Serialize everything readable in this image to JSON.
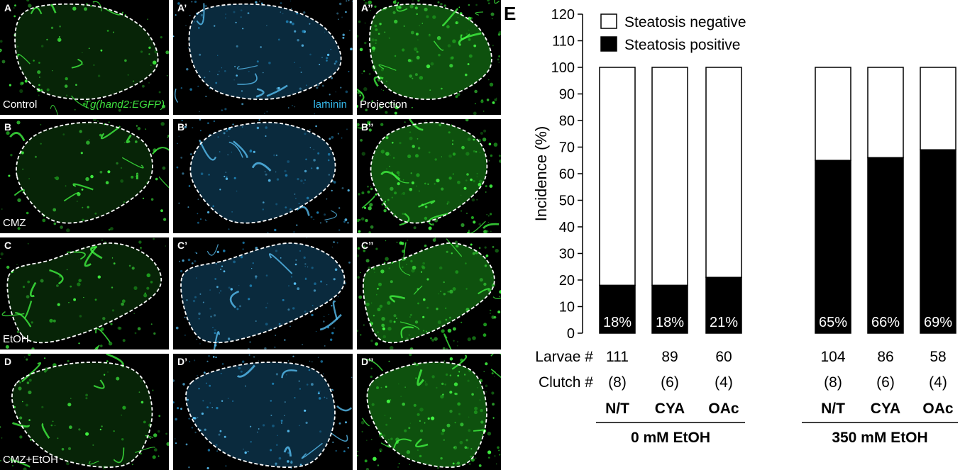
{
  "panels": [
    {
      "id": "A",
      "label": "A",
      "text": "Control",
      "text2": "Tg(hand2:EGFP)",
      "kind": "green"
    },
    {
      "id": "A1",
      "label": "A’",
      "text": "laminin",
      "kind": "blue"
    },
    {
      "id": "A2",
      "label": "A’’",
      "text": "Projection",
      "kind": "green"
    },
    {
      "id": "B",
      "label": "B",
      "text": "CMZ",
      "kind": "green"
    },
    {
      "id": "B1",
      "label": "B’",
      "text": "",
      "kind": "blue"
    },
    {
      "id": "B2",
      "label": "B’’",
      "text": "",
      "kind": "green"
    },
    {
      "id": "C",
      "label": "C",
      "text": "EtOH",
      "kind": "green"
    },
    {
      "id": "C1",
      "label": "C’",
      "text": "",
      "kind": "blue"
    },
    {
      "id": "C2",
      "label": "C’’",
      "text": "",
      "kind": "green"
    },
    {
      "id": "D",
      "label": "D",
      "text": "CMZ+EtOH",
      "kind": "green"
    },
    {
      "id": "D1",
      "label": "D’",
      "text": "",
      "kind": "blue"
    },
    {
      "id": "D2",
      "label": "D’’",
      "text": "",
      "kind": "green"
    }
  ],
  "chart_data": {
    "type": "bar",
    "stacked": true,
    "panel_label": "E",
    "ylabel": "Incidence (%)",
    "ylim": [
      0,
      120
    ],
    "yticks": [
      0,
      10,
      20,
      30,
      40,
      50,
      60,
      70,
      80,
      90,
      100,
      110,
      120
    ],
    "legend": [
      {
        "name": "Steatosis negative",
        "color": "#ffffff"
      },
      {
        "name": "Steatosis positive",
        "color": "#000000"
      }
    ],
    "legend_position": "top-left",
    "categories": [
      "N/T",
      "CYA",
      "OAc",
      "N/T",
      "CYA",
      "OAc"
    ],
    "series": [
      {
        "name": "Steatosis positive",
        "values": [
          18,
          18,
          21,
          65,
          66,
          69
        ]
      },
      {
        "name": "Steatosis negative",
        "values": [
          82,
          82,
          79,
          35,
          34,
          31
        ]
      }
    ],
    "bar_labels": [
      "18%",
      "18%",
      "21%",
      "65%",
      "66%",
      "69%"
    ],
    "row_labels": {
      "larvae": "Larvae #",
      "clutch": "Clutch #"
    },
    "larvae": [
      "111",
      "89",
      "60",
      "104",
      "86",
      "58"
    ],
    "clutch": [
      "(8)",
      "(6)",
      "(4)",
      "(8)",
      "(6)",
      "(4)"
    ],
    "groups": [
      {
        "label": "0 mM EtOH",
        "members": [
          0,
          1,
          2
        ]
      },
      {
        "label": "350 mM EtOH",
        "members": [
          3,
          4,
          5
        ]
      }
    ]
  }
}
